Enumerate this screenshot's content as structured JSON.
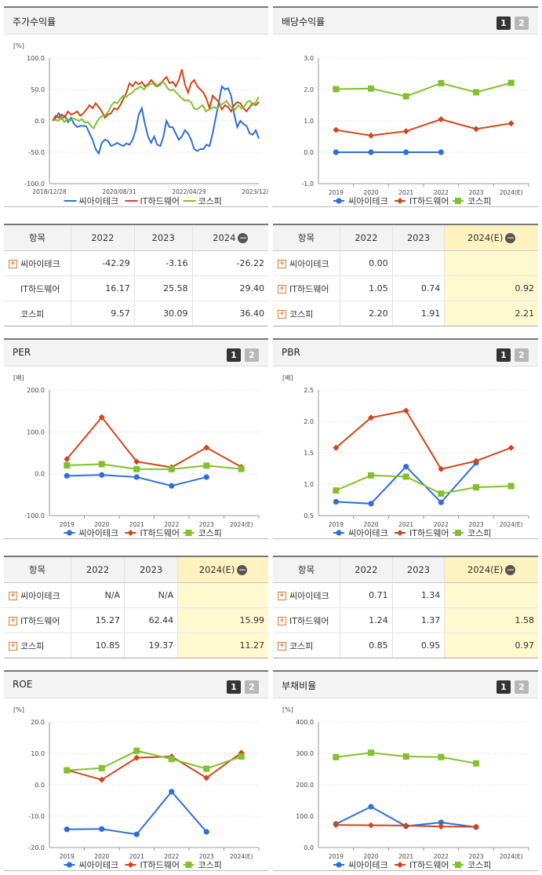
{
  "colors": {
    "s1": "#2f6fd6",
    "s2": "#d3441b",
    "s3": "#82c12d"
  },
  "legend": [
    "씨아이테크",
    "IT하드웨어",
    "코스피"
  ],
  "btn1": "1",
  "btn2": "2",
  "panels": {
    "return": {
      "title": "주가수익률",
      "unit": "[%]"
    },
    "dividend": {
      "title": "배당수익률",
      "unit": ""
    },
    "per": {
      "title": "PER",
      "unit": "[배]"
    },
    "pbr": {
      "title": "PBR",
      "unit": "[배]"
    },
    "roe": {
      "title": "ROE",
      "unit": "[%]"
    },
    "debt": {
      "title": "부채비율",
      "unit": "[%]"
    }
  },
  "tables": {
    "return": {
      "header": [
        "항목",
        "2022",
        "2023",
        "2024"
      ],
      "rows": [
        {
          "name": "씨아이테크",
          "plus": true,
          "v": [
            "-42.29",
            "-3.16",
            "-26.22"
          ]
        },
        {
          "name": "IT하드웨어",
          "plus": false,
          "v": [
            "16.17",
            "25.58",
            "29.40"
          ]
        },
        {
          "name": "코스피",
          "plus": false,
          "v": [
            "9.57",
            "30.09",
            "36.40"
          ]
        }
      ]
    },
    "dividend": {
      "header": [
        "항목",
        "2022",
        "2023",
        "2024(E)"
      ],
      "rows": [
        {
          "name": "씨아이테크",
          "plus": true,
          "v": [
            "0.00",
            "",
            ""
          ]
        },
        {
          "name": "IT하드웨어",
          "plus": true,
          "v": [
            "1.05",
            "0.74",
            "0.92"
          ]
        },
        {
          "name": "코스피",
          "plus": true,
          "v": [
            "2.20",
            "1.91",
            "2.21"
          ]
        }
      ]
    },
    "per": {
      "header": [
        "항목",
        "2022",
        "2023",
        "2024(E)"
      ],
      "rows": [
        {
          "name": "씨아이테크",
          "plus": true,
          "v": [
            "N/A",
            "N/A",
            ""
          ]
        },
        {
          "name": "IT하드웨어",
          "plus": true,
          "v": [
            "15.27",
            "62.44",
            "15.99"
          ]
        },
        {
          "name": "코스피",
          "plus": true,
          "v": [
            "10.85",
            "19.37",
            "11.27"
          ]
        }
      ]
    },
    "pbr": {
      "header": [
        "항목",
        "2022",
        "2023",
        "2024(E)"
      ],
      "rows": [
        {
          "name": "씨아이테크",
          "plus": true,
          "v": [
            "0.71",
            "1.34",
            ""
          ]
        },
        {
          "name": "IT하드웨어",
          "plus": true,
          "v": [
            "1.24",
            "1.37",
            "1.58"
          ]
        },
        {
          "name": "코스피",
          "plus": true,
          "v": [
            "0.85",
            "0.95",
            "0.97"
          ]
        }
      ]
    }
  },
  "chart_data": [
    {
      "id": "return",
      "type": "line",
      "ylim": [
        -100,
        100
      ],
      "yticks": [
        "100.0",
        "50.0",
        "0.0",
        "-50.0",
        "-100.0"
      ],
      "xlabels": [
        "2018/12/28",
        "2020/08/31",
        "2022/04/29",
        "2023/12/28"
      ],
      "series": [
        {
          "name": "씨아이테크",
          "values": [
            0,
            5,
            12,
            3,
            8,
            -2,
            5,
            -5,
            -10,
            -8,
            -8,
            -9,
            -20,
            -30,
            -45,
            -52,
            -35,
            -30,
            -32,
            -40,
            -38,
            -35,
            -38,
            -40,
            -36,
            -38,
            -30,
            -15,
            10,
            20,
            -5,
            -25,
            -35,
            -25,
            -38,
            -40,
            -25,
            0,
            -10,
            -10,
            -20,
            -30,
            -25,
            -15,
            -20,
            -30,
            -45,
            -48,
            -45,
            -45,
            -38,
            -40,
            -20,
            5,
            30,
            55,
            50,
            52,
            40,
            10,
            -10,
            0,
            -5,
            -8,
            -20,
            -22,
            -15,
            -28
          ]
        },
        {
          "name": "IT하드웨어",
          "values": [
            0,
            8,
            5,
            10,
            6,
            15,
            10,
            12,
            15,
            8,
            12,
            18,
            25,
            20,
            28,
            22,
            15,
            5,
            10,
            12,
            20,
            18,
            25,
            35,
            45,
            60,
            55,
            62,
            58,
            62,
            55,
            58,
            65,
            60,
            55,
            58,
            65,
            70,
            60,
            62,
            55,
            65,
            82,
            58,
            45,
            60,
            65,
            55,
            50,
            45,
            35,
            20,
            40,
            35,
            30,
            18,
            25,
            22,
            15,
            25,
            30,
            28,
            20,
            15,
            22,
            28,
            25,
            30
          ]
        },
        {
          "name": "코스피",
          "values": [
            0,
            2,
            0,
            6,
            -2,
            3,
            0,
            4,
            2,
            0,
            3,
            -3,
            -2,
            -8,
            -12,
            -2,
            5,
            8,
            10,
            15,
            25,
            30,
            28,
            35,
            40,
            38,
            42,
            45,
            50,
            52,
            55,
            50,
            55,
            58,
            60,
            55,
            58,
            62,
            60,
            52,
            48,
            50,
            45,
            40,
            35,
            32,
            33,
            30,
            20,
            18,
            22,
            25,
            15,
            18,
            20,
            22,
            20,
            25,
            28,
            32,
            25,
            20,
            18,
            25,
            20,
            22,
            30,
            32,
            25,
            30,
            38
          ]
        }
      ]
    },
    {
      "id": "dividend",
      "type": "line",
      "ylim": [
        -1,
        3
      ],
      "yticks": [
        "3.0",
        "2.0",
        "1.0",
        "0.0",
        "-1.0"
      ],
      "categories": [
        "2019",
        "2020",
        "2021",
        "2022",
        "2023",
        "2024(E)"
      ],
      "series": [
        {
          "name": "씨아이테크",
          "values": [
            0.0,
            0.0,
            0.0,
            0.0,
            null,
            null
          ]
        },
        {
          "name": "IT하드웨어",
          "values": [
            0.71,
            0.53,
            0.67,
            1.05,
            0.74,
            0.92
          ]
        },
        {
          "name": "코스피",
          "values": [
            2.01,
            2.03,
            1.78,
            2.2,
            1.91,
            2.21
          ]
        }
      ]
    },
    {
      "id": "per",
      "type": "line",
      "ylim": [
        -100,
        200
      ],
      "yticks": [
        "200.0",
        "100.0",
        "0.0",
        "-100.0"
      ],
      "categories": [
        "2019",
        "2020",
        "2021",
        "2022",
        "2023",
        "2024(E)"
      ],
      "series": [
        {
          "name": "씨아이테크",
          "values": [
            -5,
            -3,
            -8,
            -29,
            -8,
            null
          ]
        },
        {
          "name": "IT하드웨어",
          "values": [
            35,
            135,
            29,
            15.27,
            62.44,
            15.99
          ]
        },
        {
          "name": "코스피",
          "values": [
            20,
            23,
            11,
            10.85,
            19.37,
            11.27
          ]
        }
      ]
    },
    {
      "id": "pbr",
      "type": "line",
      "ylim": [
        0.5,
        2.5
      ],
      "yticks": [
        "2.5",
        "2.0",
        "1.5",
        "1.0",
        "0.5"
      ],
      "categories": [
        "2019",
        "2020",
        "2021",
        "2022",
        "2023",
        "2024(E)"
      ],
      "series": [
        {
          "name": "씨아이테크",
          "values": [
            0.72,
            0.69,
            1.28,
            0.71,
            1.34,
            null
          ]
        },
        {
          "name": "IT하드웨어",
          "values": [
            1.58,
            2.06,
            2.17,
            1.24,
            1.37,
            1.58
          ]
        },
        {
          "name": "코스피",
          "values": [
            0.9,
            1.14,
            1.12,
            0.85,
            0.95,
            0.97
          ]
        }
      ]
    },
    {
      "id": "roe",
      "type": "line",
      "ylim": [
        -20,
        20
      ],
      "yticks": [
        "20.0",
        "10.0",
        "0.0",
        "-10.0",
        "-20.0"
      ],
      "categories": [
        "2019",
        "2020",
        "2021",
        "2022",
        "2023",
        "2024(E)"
      ],
      "series": [
        {
          "name": "씨아이테크",
          "values": [
            -14.2,
            -14.1,
            -15.8,
            -2.2,
            -15.0,
            null
          ]
        },
        {
          "name": "IT하드웨어",
          "values": [
            4.7,
            1.6,
            8.6,
            9.0,
            2.2,
            10.2
          ]
        },
        {
          "name": "코스피",
          "values": [
            4.6,
            5.3,
            10.8,
            8.2,
            5.1,
            9.0
          ]
        }
      ]
    },
    {
      "id": "debt",
      "type": "line",
      "ylim": [
        0,
        400
      ],
      "yticks": [
        "400.0",
        "300.0",
        "200.0",
        "100.0",
        "0.0"
      ],
      "categories": [
        "2019",
        "2020",
        "2021",
        "2022",
        "2023",
        "2024(E)"
      ],
      "series": [
        {
          "name": "씨아이테크",
          "values": [
            75,
            130,
            68,
            80,
            65,
            null
          ]
        },
        {
          "name": "IT하드웨어",
          "values": [
            72,
            71,
            70,
            67,
            66,
            null
          ]
        },
        {
          "name": "코스피",
          "values": [
            288,
            302,
            290,
            288,
            268,
            null
          ]
        }
      ]
    }
  ]
}
